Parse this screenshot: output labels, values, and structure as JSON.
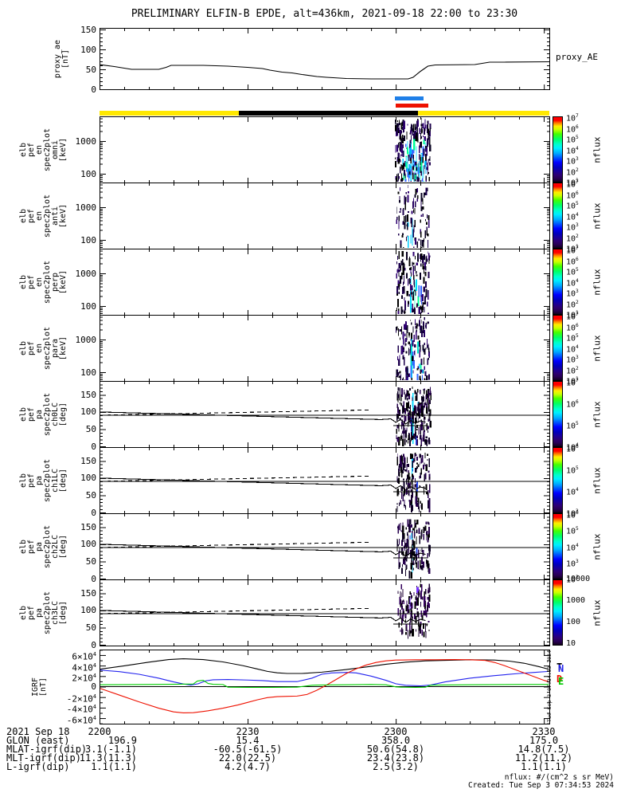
{
  "title": "PRELIMINARY ELFIN-B EPDE, alt=436km, 2021-09-18 22:00 to 23:30",
  "time_axis": {
    "range_min": [
      0,
      91.1
    ],
    "minor_step_min": 5,
    "major_ticks": [
      {
        "minute": 0,
        "label": "2200"
      },
      {
        "minute": 30,
        "label": "2230"
      },
      {
        "minute": 60,
        "label": "2300"
      },
      {
        "minute": 90,
        "label": "2330"
      }
    ]
  },
  "bars": {
    "blue_zone": {
      "x_min": 59.9,
      "x_max": 65.6,
      "color": "#1f7fe8"
    },
    "red_zone": {
      "x_min": 60.0,
      "x_max": 66.6,
      "color": "#ee1100"
    },
    "track_bar": {
      "x_min": 0,
      "x_max": 91.1,
      "color": "#ffe800",
      "night_segment": {
        "x_min": 28.2,
        "x_max": 64.5,
        "color": "#000000"
      }
    }
  },
  "colorbar_gradient": [
    "#ff0000 0%",
    "#ff0000 5%",
    "#ff7700 9%",
    "#ffee00 14%",
    "#ccff00 19%",
    "#44ff00 26%",
    "#00ff66 34%",
    "#00ffcc 42%",
    "#00eeff 48%",
    "#00aaff 56%",
    "#0055ff 63%",
    "#0000ff 70%",
    "#0000bb 78%",
    "#1a0099 84%",
    "#2d0070 90%",
    "#270052 95%",
    "#12001f 100%"
  ],
  "pitch_lines": {
    "horizontal_deg": 90,
    "solid_lc": {
      "x": [
        0,
        57,
        59,
        60,
        61,
        62,
        63,
        64,
        65,
        66
      ],
      "y": [
        100,
        78,
        80,
        70,
        78,
        65,
        75,
        68,
        74,
        71
      ]
    },
    "dashed_alc": {
      "x": [
        0,
        55
      ],
      "y": [
        90.5,
        106
      ]
    },
    "cross": {
      "hx": [
        59.5,
        66.5
      ],
      "hy": 60,
      "vx": 63.3,
      "vy": [
        25,
        100
      ]
    }
  },
  "igrf_legend": [
    {
      "letter": "T",
      "color": "#000000"
    },
    {
      "letter": "N",
      "color": "#2222ee"
    },
    {
      "letter": "D",
      "color": "#ee1100"
    },
    {
      "letter": "E",
      "color": "#00cc00"
    }
  ],
  "side_note": "Tue Sep  3 07:34:53 2024",
  "chart_data": [
    {
      "id": "proxy_ae",
      "type": "line",
      "ylabel_lines": [
        "proxy_ae",
        "[nT]"
      ],
      "label_cx": 78,
      "right_label": "proxy_AE",
      "yrange": [
        0,
        154
      ],
      "yticks": [
        0,
        50,
        100,
        150
      ],
      "yminor": 10,
      "series": [
        {
          "name": "proxy_AE",
          "color": "#000000",
          "x": [
            0,
            3,
            6.5,
            9,
            12,
            13.5,
            14.5,
            21,
            26,
            30,
            33,
            34.5,
            35.5,
            37,
            39,
            41,
            44,
            46,
            50,
            55,
            62.5,
            63.5,
            65,
            66.5,
            68,
            76,
            77.5,
            79,
            82,
            91.1
          ],
          "y": [
            62,
            57,
            50,
            50,
            50,
            55,
            60,
            60,
            58,
            55,
            52,
            48,
            46,
            43,
            41,
            37,
            32,
            30,
            27,
            26,
            26,
            30,
            45,
            58,
            61,
            62,
            65,
            68,
            68,
            69
          ]
        }
      ]
    },
    {
      "id": "en_omni",
      "type": "heatmap",
      "subtype": "energy_spectrogram",
      "ylabel_lines": [
        "elb",
        "pef",
        "en",
        "spec2plot",
        "omni",
        "[keV]"
      ],
      "label_cx": 55,
      "ylog_range": [
        54,
        5700
      ],
      "yticks": [
        100,
        1000
      ],
      "colorbar_labels": [
        "10^7",
        "10^6",
        "10^5",
        "10^4",
        "10^3",
        "10^2",
        "10^1"
      ],
      "colorbar_title": "nflux",
      "burst": {
        "seed": 11,
        "x0": 59.8,
        "x1": 66.9,
        "n": 260,
        "yband": [
          0.02,
          0.99
        ],
        "dark": [
          "#1c004d",
          "#2e0070",
          "#070020",
          "#000000"
        ],
        "bright": [
          "#00ccff",
          "#00aaff",
          "#00ff99",
          "#3366ff",
          "#7fe8ff"
        ],
        "bright_x": [
          61.3,
          66.0
        ],
        "bright_yband": [
          0.3,
          1.0
        ],
        "bright_frac": 0.34,
        "columns": [
          {
            "x": 63.0,
            "w": 1.3,
            "y0": 0.38,
            "y1": 0.99,
            "color": "#00cfff"
          },
          {
            "x": 64.1,
            "w": 1.0,
            "y0": 0.45,
            "y1": 0.95,
            "color": "#29e0ff"
          }
        ]
      }
    },
    {
      "id": "en_anti",
      "type": "heatmap",
      "subtype": "energy_spectrogram",
      "ylabel_lines": [
        "elb",
        "pef",
        "en",
        "spec2plot",
        "anti",
        "[keV]"
      ],
      "label_cx": 55,
      "ylog_range": [
        54,
        5700
      ],
      "yticks": [
        100,
        1000
      ],
      "colorbar_labels": [
        "10^7",
        "10^6",
        "10^5",
        "10^4",
        "10^3",
        "10^2",
        "10^1"
      ],
      "colorbar_title": "nflux",
      "burst": {
        "seed": 22,
        "x0": 60.0,
        "x1": 66.9,
        "n": 100,
        "yband": [
          0.03,
          0.98
        ],
        "dark": [
          "#1c004d",
          "#2e0070",
          "#070020",
          "#000000"
        ],
        "bright": [
          "#00ccff",
          "#3366ff",
          "#00ff99"
        ],
        "bright_x": [
          62.0,
          64.8
        ],
        "bright_yband": [
          0.45,
          1.0
        ],
        "bright_frac": 0.2,
        "columns": [
          {
            "x": 63.3,
            "w": 0.9,
            "y0": 0.55,
            "y1": 0.95,
            "color": "#00cfff"
          }
        ]
      }
    },
    {
      "id": "en_perp",
      "type": "heatmap",
      "subtype": "energy_spectrogram",
      "ylabel_lines": [
        "elb",
        "pef",
        "en",
        "spec2plot",
        "perp",
        "[keV]"
      ],
      "label_cx": 55,
      "ylog_range": [
        54,
        5700
      ],
      "yticks": [
        100,
        1000
      ],
      "colorbar_labels": [
        "10^7",
        "10^6",
        "10^5",
        "10^4",
        "10^3",
        "10^2",
        "10^1"
      ],
      "colorbar_title": "nflux",
      "burst": {
        "seed": 33,
        "x0": 60.0,
        "x1": 66.7,
        "n": 150,
        "yband": [
          0.03,
          0.98
        ],
        "dark": [
          "#1c004d",
          "#2e0070",
          "#070020",
          "#000000"
        ],
        "bright": [
          "#00ccff",
          "#00e0ff",
          "#00ff99",
          "#3366ff"
        ],
        "bright_x": [
          61.8,
          65.2
        ],
        "bright_yband": [
          0.4,
          1.0
        ],
        "bright_frac": 0.3,
        "columns": [
          {
            "x": 62.9,
            "w": 1.4,
            "y0": 0.42,
            "y1": 0.97,
            "color": "#00e0ff"
          },
          {
            "x": 63.8,
            "w": 0.9,
            "y0": 0.5,
            "y1": 0.93,
            "color": "#55ffcc"
          }
        ]
      }
    },
    {
      "id": "en_para",
      "type": "heatmap",
      "subtype": "energy_spectrogram",
      "ylabel_lines": [
        "elb",
        "pef",
        "en",
        "spec2plot",
        "para",
        "[keV]"
      ],
      "label_cx": 55,
      "ylog_range": [
        54,
        5700
      ],
      "yticks": [
        100,
        1000
      ],
      "colorbar_labels": [
        "10^7",
        "10^6",
        "10^5",
        "10^4",
        "10^3",
        "10^2",
        "10^1"
      ],
      "colorbar_title": "nflux",
      "burst": {
        "seed": 44,
        "x0": 60.0,
        "x1": 66.7,
        "n": 150,
        "yband": [
          0.03,
          0.98
        ],
        "dark": [
          "#1c004d",
          "#2e0070",
          "#070020",
          "#000000"
        ],
        "bright": [
          "#00ccff",
          "#00e5cc",
          "#00ff99",
          "#3366ff"
        ],
        "bright_x": [
          61.8,
          65.5
        ],
        "bright_yband": [
          0.35,
          1.0
        ],
        "bright_frac": 0.3,
        "columns": [
          {
            "x": 63.1,
            "w": 1.6,
            "y0": 0.35,
            "y1": 0.99,
            "color": "#00e5ff"
          }
        ]
      }
    },
    {
      "id": "pa_ch0lc",
      "type": "heatmap",
      "subtype": "pitch_angle_spectrogram",
      "pitch_overlay": true,
      "ylabel_lines": [
        "elb",
        "pef",
        "pa",
        "spec2plot",
        "ch0LC",
        "[deg]"
      ],
      "label_cx": 55,
      "yrange": [
        -2,
        190
      ],
      "yticks": [
        0,
        50,
        100,
        150
      ],
      "yminor": 10,
      "colorbar_labels": [
        "10^7",
        "10^6",
        "10^5",
        "10^4"
      ],
      "colorbar_title": "nflux",
      "burst": {
        "seed": 55,
        "x0": 60.0,
        "x1": 67.0,
        "n": 230,
        "yband": [
          0.08,
          0.92
        ],
        "dark": [
          "#000000",
          "#0d0026",
          "#26004d"
        ],
        "bright": [
          "#00ccff",
          "#2244ee"
        ],
        "bright_x": [
          62.5,
          64.5
        ],
        "bright_yband": [
          0.1,
          0.95
        ],
        "bright_frac": 0.07,
        "columns": [
          {
            "x": 63.4,
            "w": 1.1,
            "y0": 0.18,
            "y1": 0.95,
            "color": "#00e0ff"
          }
        ]
      }
    },
    {
      "id": "pa_ch1lc",
      "type": "heatmap",
      "subtype": "pitch_angle_spectrogram",
      "pitch_overlay": true,
      "ylabel_lines": [
        "elb",
        "pef",
        "pa",
        "spec2plot",
        "ch1LC",
        "[deg]"
      ],
      "label_cx": 55,
      "yrange": [
        -2,
        190
      ],
      "yticks": [
        0,
        50,
        100,
        150
      ],
      "yminor": 10,
      "colorbar_labels": [
        "10^6",
        "10^5",
        "10^4",
        "10^3"
      ],
      "colorbar_title": "nflux",
      "burst": {
        "seed": 66,
        "x0": 60.2,
        "x1": 66.8,
        "n": 150,
        "yband": [
          0.08,
          0.92
        ],
        "dark": [
          "#000000",
          "#0d0026",
          "#26004d"
        ],
        "bright": [
          "#00ccff",
          "#2244ee"
        ],
        "bright_x": [
          62.6,
          64.2
        ],
        "bright_yband": [
          0.15,
          0.95
        ],
        "bright_frac": 0.08,
        "columns": [
          {
            "x": 63.2,
            "w": 1.0,
            "y0": 0.2,
            "y1": 0.92,
            "color": "#00e0ff"
          }
        ]
      }
    },
    {
      "id": "pa_ch2lc",
      "type": "heatmap",
      "subtype": "pitch_angle_spectrogram",
      "pitch_overlay": true,
      "ylabel_lines": [
        "elb",
        "pef",
        "pa",
        "spec2plot",
        "ch2LC",
        "[deg]"
      ],
      "label_cx": 55,
      "yrange": [
        -2,
        190
      ],
      "yticks": [
        0,
        50,
        100,
        150
      ],
      "yminor": 10,
      "colorbar_labels": [
        "10^6",
        "10^5",
        "10^4",
        "10^3",
        "10^2"
      ],
      "colorbar_title": "nflux",
      "burst": {
        "seed": 77,
        "x0": 60.2,
        "x1": 66.8,
        "n": 150,
        "yband": [
          0.08,
          0.9
        ],
        "dark": [
          "#000000",
          "#0d0026",
          "#26004d"
        ],
        "bright": [
          "#00ccff",
          "#2244ee"
        ],
        "bright_x": [
          62.6,
          64.2
        ],
        "bright_yband": [
          0.2,
          0.95
        ],
        "bright_frac": 0.07,
        "columns": [
          {
            "x": 63.3,
            "w": 1.0,
            "y0": 0.25,
            "y1": 0.9,
            "color": "#00d5ff"
          }
        ]
      }
    },
    {
      "id": "pa_ch3lc",
      "type": "heatmap",
      "subtype": "pitch_angle_spectrogram",
      "pitch_overlay": true,
      "ylabel_lines": [
        "elb",
        "pef",
        "pa",
        "spec2plot",
        "ch3LC",
        "[deg]"
      ],
      "label_cx": 55,
      "yrange": [
        -2,
        190
      ],
      "yticks": [
        0,
        50,
        100,
        150
      ],
      "yminor": 10,
      "colorbar_labels": [
        "10000",
        "1000",
        "100",
        "10"
      ],
      "colorbar_title": "nflux",
      "burst": {
        "seed": 88,
        "x0": 60.3,
        "x1": 66.7,
        "n": 130,
        "yband": [
          0.06,
          0.8
        ],
        "dark": [
          "#33005c",
          "#1c0033",
          "#000000"
        ],
        "bright": [
          "#7733ff"
        ],
        "bright_x": [
          62.5,
          64.5
        ],
        "bright_yband": [
          0.1,
          0.8
        ],
        "bright_frac": 0.12,
        "columns": []
      }
    },
    {
      "id": "igrf",
      "type": "line",
      "ylabel_lines": [
        "IGRF",
        "[nT]"
      ],
      "label_cx": 50,
      "yrange": [
        -7.05,
        7.05
      ],
      "yunit": "1e4 nT",
      "yticks": [
        6,
        4,
        2,
        0,
        -2,
        -4,
        -6
      ],
      "ytick_labels": [
        "6×10^4",
        "4×10^4",
        "2×10^4",
        "0",
        "-2×10^4",
        "-4×10^4",
        "-6×10^4"
      ],
      "yminor": 1,
      "zero_line": true,
      "series": [
        {
          "name": "T",
          "color": "#000000",
          "x": [
            0,
            5,
            10,
            14,
            17,
            21,
            25,
            29,
            32,
            34,
            36,
            38,
            41,
            45,
            50,
            55,
            58,
            62,
            66,
            70,
            75,
            80,
            83,
            86,
            89,
            91
          ],
          "y": [
            3.3,
            3.95,
            4.65,
            5.15,
            5.3,
            5.15,
            4.7,
            4.0,
            3.35,
            2.9,
            2.62,
            2.5,
            2.5,
            2.75,
            3.25,
            3.85,
            4.25,
            4.65,
            4.9,
            5.0,
            5.1,
            5.05,
            4.85,
            4.45,
            3.8,
            3.3
          ]
        },
        {
          "name": "N",
          "color": "#2222ee",
          "x": [
            0,
            4,
            8,
            12,
            15,
            17,
            18.5,
            20,
            21.5,
            23,
            26,
            30,
            33,
            36,
            40,
            43,
            45,
            47,
            50,
            52,
            55,
            58,
            60,
            62,
            65,
            67,
            70,
            75,
            80,
            85,
            88,
            91
          ],
          "y": [
            3.15,
            2.85,
            2.35,
            1.6,
            0.9,
            0.5,
            0.3,
            0.55,
            1.1,
            1.3,
            1.35,
            1.25,
            1.15,
            0.95,
            0.95,
            1.6,
            2.35,
            2.6,
            2.7,
            2.6,
            2.0,
            1.2,
            0.55,
            0.25,
            0.15,
            0.3,
            0.9,
            1.6,
            2.1,
            2.5,
            2.7,
            2.9
          ]
        },
        {
          "name": "D",
          "color": "#ee1100",
          "x": [
            0,
            4,
            8,
            12,
            15,
            17,
            19,
            22,
            25,
            28,
            30,
            32,
            34,
            36,
            38,
            40,
            42,
            44,
            46,
            48,
            50,
            52,
            54,
            56,
            58,
            60,
            64,
            68,
            72,
            75,
            78,
            80,
            82,
            84,
            86,
            88,
            90,
            91
          ],
          "y": [
            -0.3,
            -1.6,
            -2.9,
            -4.1,
            -4.8,
            -5.0,
            -4.95,
            -4.6,
            -4.1,
            -3.5,
            -3.0,
            -2.5,
            -2.1,
            -1.9,
            -1.85,
            -1.8,
            -1.5,
            -0.7,
            0.3,
            1.4,
            2.5,
            3.4,
            4.1,
            4.6,
            4.9,
            5.05,
            5.1,
            5.1,
            5.15,
            5.1,
            5.0,
            4.6,
            4.0,
            3.3,
            2.6,
            1.9,
            1.2,
            0.9
          ]
        },
        {
          "name": "E",
          "color": "#00cc00",
          "x": [
            0,
            10,
            15,
            19,
            19.8,
            21,
            22,
            23,
            25,
            26,
            30,
            35,
            40,
            43,
            44,
            50,
            55,
            58,
            60,
            61,
            64,
            66,
            67,
            68,
            75,
            85,
            91
          ],
          "y": [
            0.35,
            0.4,
            0.45,
            0.5,
            1.05,
            1.2,
            0.6,
            0.45,
            0.4,
            -0.1,
            -0.15,
            -0.15,
            -0.1,
            0.25,
            0.3,
            0.35,
            0.4,
            0.35,
            -0.05,
            -0.1,
            -0.15,
            -0.1,
            0.25,
            0.3,
            0.35,
            0.4,
            0.4
          ]
        }
      ]
    }
  ],
  "bottom": {
    "date_label": "2021 Sep 18",
    "rows": [
      {
        "label": "GLON (east)",
        "values": [
          "196.9",
          "15.4",
          "358.0",
          "175.0"
        ]
      },
      {
        "label": "MLAT-igrf(dip)",
        "values": [
          "3.1(-1.1)",
          "-60.5(-61.5)",
          "50.6(54.8)",
          "14.8(7.5)"
        ]
      },
      {
        "label": "MLT-igrf(dip)",
        "values": [
          "11.3(11.3)",
          "22.0(22.5)",
          "23.4(23.8)",
          "11.2(11.2)"
        ]
      },
      {
        "label": "L-igrf(dip)",
        "values": [
          "1.1(1.1)",
          "4.2(4.7)",
          "2.5(3.2)",
          "1.1(1.1)"
        ]
      }
    ]
  },
  "footer": {
    "units": "nflux: #/(cm^2 s sr MeV)",
    "created": "Created: Tue Sep  3 07:34:53 2024"
  }
}
